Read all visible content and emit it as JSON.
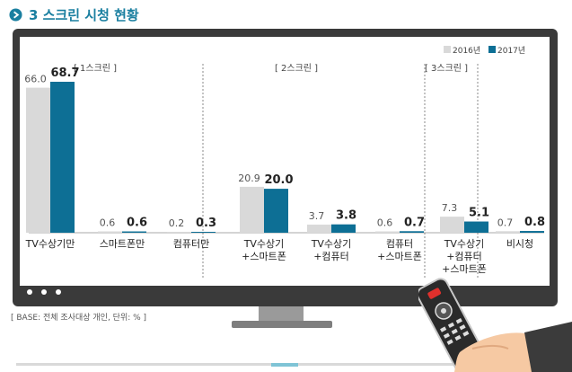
{
  "header": {
    "title": "3 스크린 시청 현황"
  },
  "footnote": "[ BASE: 전체 조사대상 개인, 단위: % ]",
  "chart_data": {
    "type": "bar",
    "title": "3 스크린 시청 현황",
    "unit": "%",
    "ylim": [
      0,
      75
    ],
    "groups": [
      {
        "label": "[ 1스크린 ]",
        "categories": [
          0,
          1,
          2
        ]
      },
      {
        "label": "[ 2스크린 ]",
        "categories": [
          3,
          4,
          5
        ]
      },
      {
        "label": "[ 3스크린 ]",
        "categories": [
          6
        ]
      }
    ],
    "categories": [
      [
        "TV수상기만"
      ],
      [
        "스마트폰만"
      ],
      [
        "컴퓨터만"
      ],
      [
        "TV수상기",
        "+스마트폰"
      ],
      [
        "TV수상기",
        "+컴퓨터"
      ],
      [
        "컴퓨터",
        "+스마트폰"
      ],
      [
        "TV수상기",
        "+컴퓨터",
        "+스마트폰"
      ],
      [
        "비시청"
      ]
    ],
    "series": [
      {
        "name": "2016년",
        "color": "#d9d9d9",
        "values": [
          66.0,
          0.6,
          0.2,
          20.9,
          3.7,
          0.6,
          7.3,
          0.7
        ]
      },
      {
        "name": "2017년",
        "color": "#0d6f95",
        "values": [
          68.7,
          0.6,
          0.3,
          20.0,
          3.8,
          0.7,
          5.1,
          0.8
        ]
      }
    ],
    "legend_position": "top-right"
  }
}
